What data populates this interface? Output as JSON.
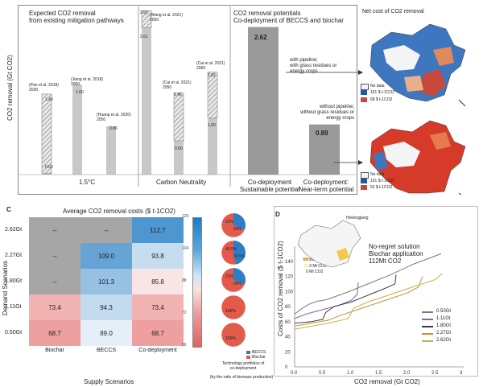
{
  "chart_data": [
    {
      "type": "bar",
      "panel": "top-left",
      "ylabel": "CO2 removal (Gt CO2)",
      "groups": [
        "1.5°C",
        "Carbon Neutrality"
      ],
      "section_titles": [
        "Expected CO2 removal\nfrom existing mitigation pathways",
        "CO2 removal potentials\nCo-deployment of BECCS and biochar"
      ],
      "bars": [
        {
          "label": "(Pan et al. 2018)\n2030",
          "low": 0.02,
          "high": 1.43,
          "low_label": "0.02",
          "high_label": "1.43"
        },
        {
          "label": "(Jiang et al. 2018)\n2050",
          "value": 1.6,
          "value_label": "1.60"
        },
        {
          "label": "(Huang et al. 2020)\n2050",
          "value": 0.86,
          "value_label": "0.86"
        },
        {
          "label": "(Wang et al. 2021)\n2050",
          "low": 2.61,
          "high": 2.91,
          "low_label": "2.61",
          "high_label": "2.91"
        },
        {
          "label": "(Cai et al. 2021)\n2050",
          "low": 0.6,
          "high": 1.45,
          "low_label": "0.60",
          "high_label": "1.45"
        },
        {
          "label": "(Cai et al. 2021)\n2060",
          "low": 1.0,
          "high": 1.82,
          "low_label": "1.00",
          "high_label": "1.82"
        },
        {
          "label": "Co-deployment\nSustainable potential",
          "value": 2.62,
          "value_label": "2.62"
        },
        {
          "label": "Co-deployment:\nNear-term potential",
          "value": 0.89,
          "value_label": "0.89"
        }
      ],
      "annotations": [
        "with pipeline;\nwith grass residues or\nenergy crops",
        "without pipeline;\nwithout grass residues or\nenergy crops"
      ]
    },
    {
      "type": "heatmap",
      "panel": "bottom-left",
      "panel_letter": "C",
      "title": "Average CO2 removal costs ($ t-1CO2)",
      "xlabel": "Supply Scenarios",
      "ylabel": "Demand Scenarios",
      "x": [
        "Biochar",
        "BECCS",
        "Co-deployment"
      ],
      "y": [
        "2.62Gt",
        "2.27Gt",
        "1.80Gt",
        "1.11Gt",
        "0.50Gt"
      ],
      "values": [
        [
          "--",
          "--",
          "112.7"
        ],
        [
          "--",
          "109.0",
          "93.8"
        ],
        [
          "--",
          "101.3",
          "85.8"
        ],
        [
          "73.4",
          "94.3",
          "73.4"
        ],
        [
          "68.7",
          "89.0",
          "68.7"
        ]
      ],
      "colorbar": {
        "ticks": [
          "120",
          "104",
          "88",
          "72",
          "56"
        ],
        "min": 56,
        "max": 120
      },
      "pies": [
        {
          "beccs_pct": 31,
          "biochar_pct": 69,
          "labels": [
            "31%",
            "69%"
          ]
        },
        {
          "beccs_pct": 46.5,
          "biochar_pct": 53.5,
          "labels": [
            "46.5%",
            "53.5%"
          ]
        },
        {
          "beccs_pct": 31,
          "biochar_pct": 69,
          "labels": [
            "31%",
            "69%"
          ]
        },
        {
          "beccs_pct": 0,
          "biochar_pct": 100,
          "labels": [
            "100%"
          ]
        },
        {
          "beccs_pct": 0,
          "biochar_pct": 100,
          "labels": [
            "100%"
          ]
        }
      ],
      "pie_legend": [
        "BECCS",
        "Biochar"
      ],
      "pie_caption": "Technology portfolios of\nco-deployment",
      "pie_caption2": "(by the ratio of biomass production)"
    },
    {
      "type": "line",
      "panel": "bottom-right",
      "panel_letter": "D",
      "xlabel": "CO2 removal (Gt CO2)",
      "ylabel": "Costs of CO2 removal ($ t-1CO2)",
      "xlim": [
        0,
        3.0
      ],
      "ylim": [
        0,
        160
      ],
      "xticks": [
        "0.0",
        "0.5",
        "1.0",
        "1.5",
        "2.0",
        "2.5",
        "3"
      ],
      "yticks": [
        "0",
        "20",
        "40",
        "60",
        "80",
        "100",
        "120",
        "140"
      ],
      "annotation": "No-regret solution\nBiochar application\n112Mt CO2",
      "inset_labels": [
        "Heilongjiang",
        "Yunnan",
        "1.3 Mt CO2",
        "0 Mt CO2"
      ],
      "series": [
        {
          "name": "0.50Gt",
          "color": "#7a7a7a",
          "x": [
            0.0,
            0.1,
            0.25,
            0.4,
            0.5,
            0.6,
            0.9,
            1.3,
            1.7,
            2.1,
            2.6
          ],
          "y": [
            70,
            76,
            83,
            87,
            88,
            90,
            98,
            110,
            122,
            136,
            150
          ]
        },
        {
          "name": "1.11Gt",
          "color": "#8a5fb0",
          "x": [
            0.0,
            0.2,
            0.4,
            0.6,
            0.8,
            1.0,
            1.11,
            1.13
          ],
          "y": [
            64,
            70,
            74,
            78,
            82,
            88,
            96,
            112
          ]
        },
        {
          "name": "1.80Gt",
          "color": "#3d3d3d",
          "x": [
            0.0,
            0.3,
            0.5,
            0.55,
            0.7,
            1.0,
            1.2,
            1.4,
            1.6,
            1.78,
            1.8
          ],
          "y": [
            58,
            60,
            63,
            72,
            80,
            86,
            92,
            98,
            104,
            110,
            122
          ]
        },
        {
          "name": "2.27Gt",
          "color": "#d08a3a",
          "x": [
            0.0,
            0.3,
            0.6,
            0.8,
            1.2,
            1.6,
            2.0,
            2.2,
            2.27
          ],
          "y": [
            54,
            58,
            62,
            68,
            78,
            88,
            98,
            106,
            120
          ]
        },
        {
          "name": "2.62Gt",
          "color": "#b6b845",
          "x": [
            0.0,
            0.3,
            0.6,
            0.95,
            1.05,
            1.3,
            1.7,
            2.1,
            2.5,
            2.62
          ],
          "y": [
            50,
            54,
            58,
            64,
            78,
            86,
            96,
            106,
            116,
            124
          ]
        }
      ]
    },
    {
      "type": "map",
      "panel": "top-right",
      "title": "Net cost of CO2 removal",
      "legend_maps": [
        [
          "No data",
          "151 $ t-1CO2",
          "68 $ t-1CO2"
        ],
        [
          "No data",
          "151 $ t-1CO2",
          "52 $ t-1CO2"
        ]
      ]
    }
  ],
  "colors": {
    "bar_gray": "#c8c8c8",
    "dark_gray": "#9a9a9a",
    "heat_gray": "#a6a6a6",
    "heat_blue": "#2a8fd1",
    "heat_red": "#e66b6b",
    "pie_red": "#e15a4b",
    "pie_blue": "#2c7fc7"
  }
}
